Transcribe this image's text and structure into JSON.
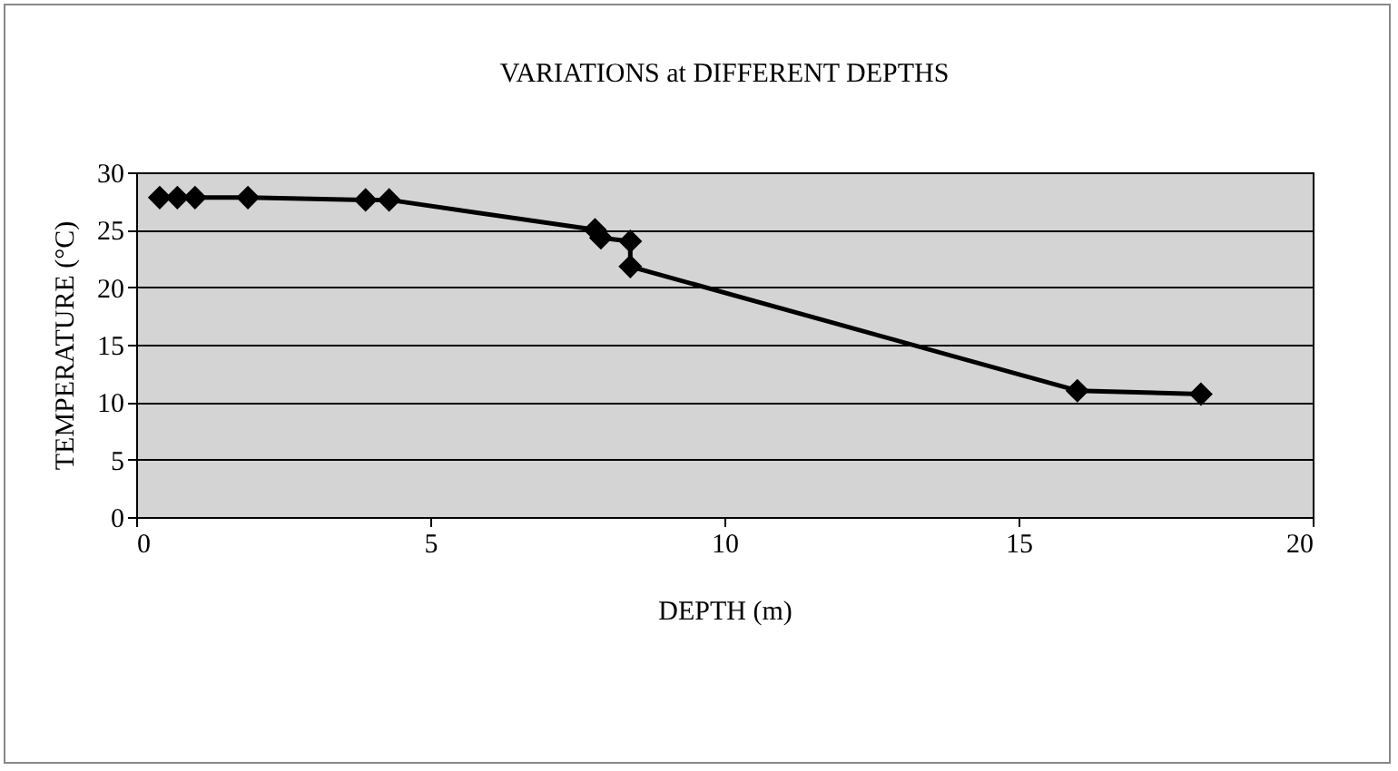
{
  "chart_data": {
    "type": "line",
    "title": "VARIATIONS at DIFFERENT DEPTHS",
    "xlabel": "DEPTH (m)",
    "ylabel": "TEMPERATURE (°C)",
    "x": [
      0.4,
      0.7,
      1.0,
      1.9,
      3.9,
      4.3,
      7.8,
      7.9,
      8.4,
      8.4,
      16.0,
      18.1
    ],
    "series": [
      {
        "color": "#000000",
        "values": [
          27.8,
          27.8,
          27.8,
          27.8,
          27.6,
          27.6,
          25.0,
          24.3,
          24.0,
          21.8,
          11.0,
          10.7
        ]
      }
    ],
    "xlim": [
      0,
      20
    ],
    "xticks": [
      0,
      5,
      10,
      15,
      20
    ],
    "ylim": [
      0,
      30
    ],
    "yticks": [
      0,
      5,
      10,
      15,
      20,
      25,
      30
    ],
    "grid": "y",
    "marker": "diamond",
    "line_style": "solid"
  }
}
